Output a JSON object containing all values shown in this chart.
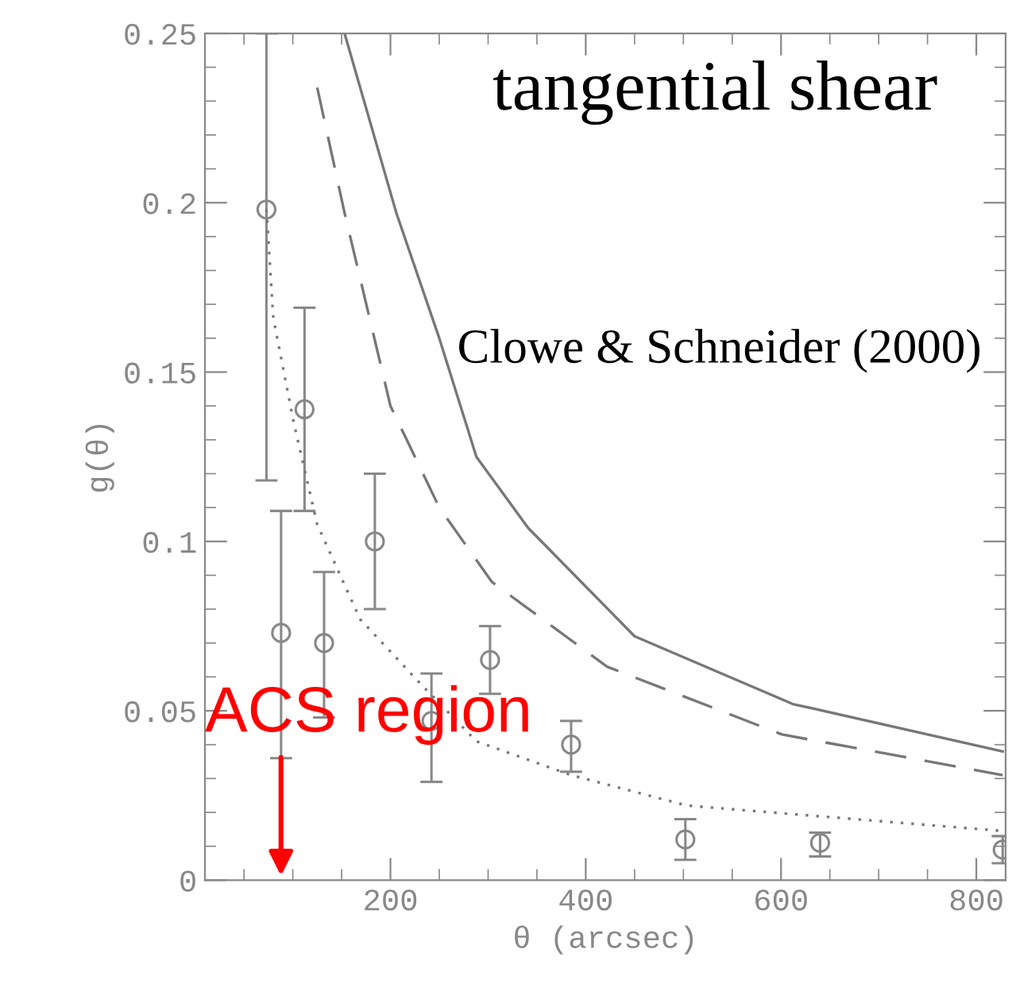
{
  "chart_data": {
    "type": "scatter",
    "xlabel": "θ (arcsec)",
    "ylabel": "g(θ)",
    "xlim": [
      10,
      830
    ],
    "ylim": [
      0,
      0.25
    ],
    "xticks": [
      200,
      400,
      600,
      800
    ],
    "yticks": [
      0,
      0.05,
      0.1,
      0.15,
      0.2,
      0.25
    ],
    "grid": false,
    "series": [
      {
        "marker": "circle",
        "color": "#888888",
        "x": [
          73,
          88,
          112,
          132,
          184,
          242,
          302,
          385,
          502,
          640,
          827
        ],
        "values": [
          0.198,
          0.073,
          0.139,
          0.07,
          0.1,
          0.047,
          0.065,
          0.04,
          0.012,
          0.011,
          0.009
        ],
        "errors": [
          [
            0.118,
            0.25
          ],
          [
            0.036,
            0.109
          ],
          [
            0.109,
            0.169
          ],
          [
            0.048,
            0.091
          ],
          [
            0.08,
            0.12
          ],
          [
            0.029,
            0.061
          ],
          [
            0.055,
            0.075
          ],
          [
            0.032,
            0.047
          ],
          [
            0.006,
            0.018
          ],
          [
            0.007,
            0.014
          ],
          [
            0.005,
            0.013
          ]
        ]
      },
      {
        "type": "line",
        "line_style": "solid",
        "color": "#777777",
        "x": [
          153,
          206,
          250,
          288,
          341,
          450,
          612,
          827
        ],
        "values": [
          0.25,
          0.197,
          0.16,
          0.125,
          0.104,
          0.072,
          0.052,
          0.038
        ]
      },
      {
        "type": "line",
        "line_style": "dashed",
        "color": "#777777",
        "x": [
          125,
          153,
          200,
          250,
          304,
          422,
          601,
          827
        ],
        "values": [
          0.234,
          0.197,
          0.14,
          0.11,
          0.088,
          0.063,
          0.043,
          0.031
        ]
      },
      {
        "type": "line",
        "line_style": "dotted",
        "color": "#777777",
        "x": [
          73,
          80,
          101,
          125,
          169,
          234,
          288,
          385,
          504,
          827
        ],
        "values": [
          0.198,
          0.166,
          0.135,
          0.105,
          0.077,
          0.057,
          0.041,
          0.031,
          0.022,
          0.0145
        ]
      }
    ],
    "annotations": [
      "tangential shear",
      "Clowe & Schneider (2000)",
      "ACS region"
    ]
  }
}
